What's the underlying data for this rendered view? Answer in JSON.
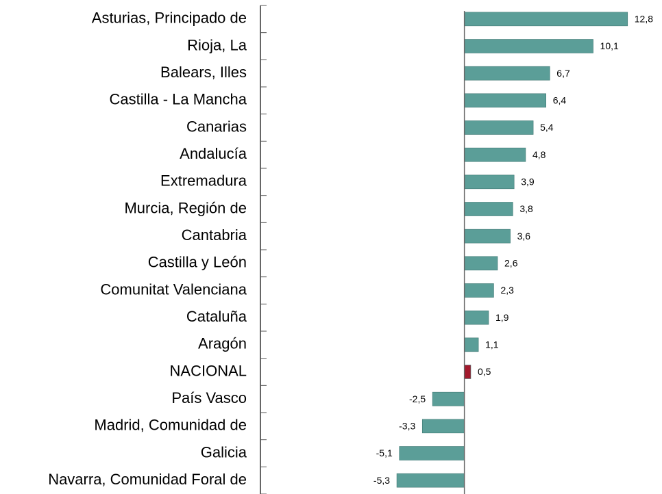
{
  "chart_data": {
    "type": "hbar",
    "categories": [
      "Asturias, Principado de",
      "Rioja, La",
      "Balears, Illes",
      "Castilla - La Mancha",
      "Canarias",
      "Andalucía",
      "Extremadura",
      "Murcia, Región de",
      "Cantabria",
      "Castilla y León",
      "Comunitat Valenciana",
      "Cataluña",
      "Aragón",
      "NACIONAL",
      "País Vasco",
      "Madrid, Comunidad de",
      "Galicia",
      "Navarra, Comunidad Foral de"
    ],
    "values": [
      12.8,
      10.1,
      6.7,
      6.4,
      5.4,
      4.8,
      3.9,
      3.8,
      3.6,
      2.6,
      2.3,
      1.9,
      1.1,
      0.5,
      -2.5,
      -3.3,
      -5.1,
      -5.3
    ],
    "value_labels": [
      "12,8",
      "10,1",
      "6,7",
      "6,4",
      "5,4",
      "4,8",
      "3,9",
      "3,8",
      "3,6",
      "2,6",
      "2,3",
      "1,9",
      "1,1",
      "0,5",
      "-2,5",
      "-3,3",
      "-5,1",
      "-5,3"
    ],
    "colors": [
      "#5b9e98",
      "#5b9e98",
      "#5b9e98",
      "#5b9e98",
      "#5b9e98",
      "#5b9e98",
      "#5b9e98",
      "#5b9e98",
      "#5b9e98",
      "#5b9e98",
      "#5b9e98",
      "#5b9e98",
      "#5b9e98",
      "#a3192c",
      "#5b9e98",
      "#5b9e98",
      "#5b9e98",
      "#5b9e98"
    ],
    "xlim": [
      -16,
      15.5
    ]
  }
}
